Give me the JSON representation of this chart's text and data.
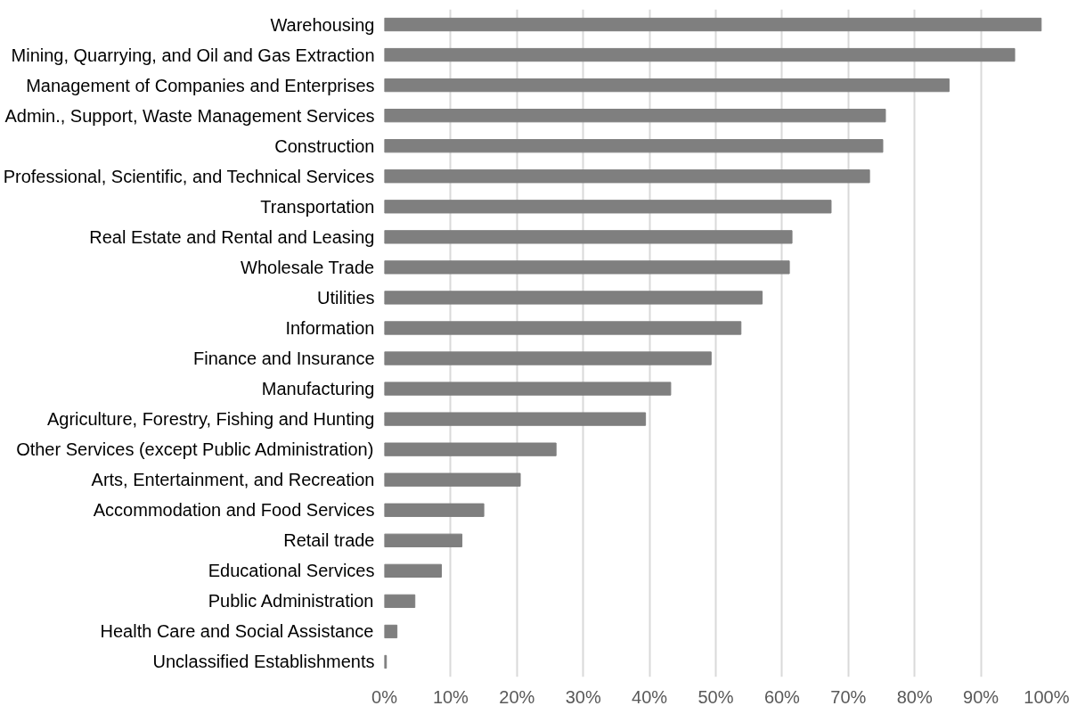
{
  "chart_data": {
    "type": "bar",
    "orientation": "horizontal",
    "categories": [
      "Warehousing",
      "Mining, Quarrying, and Oil and Gas Extraction",
      "Management of Companies and Enterprises",
      "Admin., Support, Waste Management Services",
      "Construction",
      "Professional, Scientific, and Technical Services",
      "Transportation",
      "Real Estate and Rental and Leasing",
      "Wholesale Trade",
      "Utilities",
      "Information",
      "Finance and Insurance",
      "Manufacturing",
      "Agriculture, Forestry, Fishing and Hunting",
      "Other Services (except Public Administration)",
      "Arts, Entertainment, and Recreation",
      "Accommodation and Food Services",
      "Retail trade",
      "Educational Services",
      "Public Administration",
      "Health Care and Social Assistance",
      "Unclassified Establishments"
    ],
    "values": [
      99.1,
      95.1,
      85.2,
      75.6,
      75.2,
      73.2,
      67.4,
      61.5,
      61.1,
      57.0,
      53.8,
      49.3,
      43.2,
      39.4,
      25.9,
      20.5,
      15.0,
      11.7,
      8.6,
      4.6,
      1.9,
      0.3
    ],
    "color": "#7f7f7f",
    "xlim": [
      0,
      100
    ],
    "xticks": [
      {
        "value": 0,
        "label": "0%"
      },
      {
        "value": 10,
        "label": "10%"
      },
      {
        "value": 20,
        "label": "20%"
      },
      {
        "value": 30,
        "label": "30%"
      },
      {
        "value": 40,
        "label": "40%"
      },
      {
        "value": 50,
        "label": "50%"
      },
      {
        "value": 60,
        "label": "60%"
      },
      {
        "value": 70,
        "label": "70%"
      },
      {
        "value": 80,
        "label": "80%"
      },
      {
        "value": 90,
        "label": "90%"
      },
      {
        "value": 100,
        "label": "100%"
      }
    ],
    "grid": "x"
  }
}
